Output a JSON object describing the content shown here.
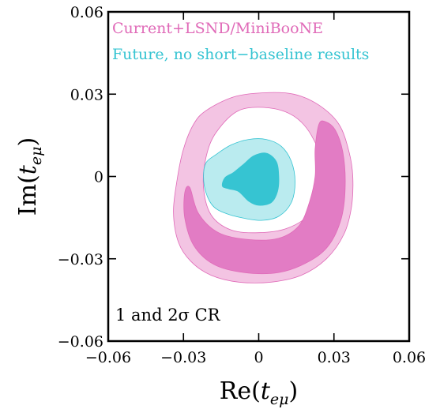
{
  "chart_data": {
    "type": "contour",
    "xlabel": {
      "prefix": "Re(",
      "symbol": "t",
      "subscript": "eμ",
      "suffix": ")"
    },
    "ylabel": {
      "prefix": "Im(",
      "symbol": "t",
      "subscript": "eμ",
      "suffix": ")"
    },
    "xlim": [
      -0.06,
      0.06
    ],
    "ylim": [
      -0.06,
      0.06
    ],
    "xticks": [
      -0.06,
      -0.03,
      0,
      0.03,
      0.06
    ],
    "yticks": [
      -0.06,
      -0.03,
      0,
      0.03,
      0.06
    ],
    "xtick_labels": [
      "−0.06",
      "−0.03",
      "0",
      "0.03",
      "0.06"
    ],
    "ytick_labels": [
      "−0.06",
      "−0.03",
      "0",
      "0.03",
      "0.06"
    ],
    "grid": false,
    "legend_position": "top-left",
    "annotation": {
      "text": "1 and 2σ CR",
      "position": "bottom-left"
    },
    "series": [
      {
        "name": "Current+LSND/MiniBooNE",
        "color": "#e06ab8",
        "regions": [
          {
            "level": "2σ",
            "color": "#f3c4e3",
            "outer": [
              [
                -0.021,
                0.024
              ],
              [
                -0.01,
                0.029
              ],
              [
                0.002,
                0.0305
              ],
              [
                0.014,
                0.03
              ],
              [
                0.024,
                0.026
              ],
              [
                0.032,
                0.019
              ],
              [
                0.036,
                0.009
              ],
              [
                0.0375,
                0.0
              ],
              [
                0.037,
                -0.011
              ],
              [
                0.034,
                -0.021
              ],
              [
                0.027,
                -0.03
              ],
              [
                0.017,
                -0.036
              ],
              [
                0.005,
                -0.0385
              ],
              [
                -0.008,
                -0.0385
              ],
              [
                -0.019,
                -0.036
              ],
              [
                -0.027,
                -0.031
              ],
              [
                -0.032,
                -0.024
              ],
              [
                -0.034,
                -0.013
              ],
              [
                -0.0325,
                -0.001
              ],
              [
                -0.03,
                0.01
              ],
              [
                -0.026,
                0.019
              ]
            ],
            "inner": [
              [
                -0.017,
                0.016
              ],
              [
                -0.008,
                0.024
              ],
              [
                0.004,
                0.025
              ],
              [
                0.014,
                0.022
              ],
              [
                0.021,
                0.015
              ],
              [
                0.025,
                0.005
              ],
              [
                0.0245,
                -0.006
              ],
              [
                0.02,
                -0.014
              ],
              [
                0.011,
                -0.019
              ],
              [
                0.0,
                -0.0205
              ],
              [
                -0.011,
                -0.0195
              ],
              [
                -0.019,
                -0.014
              ],
              [
                -0.022,
                -0.004
              ],
              [
                -0.021,
                0.007
              ]
            ]
          },
          {
            "level": "1σ",
            "color": "#e27cc4",
            "outer": [
              [
                -0.0275,
                -0.004
              ],
              [
                -0.024,
                -0.0135
              ],
              [
                -0.016,
                -0.0205
              ],
              [
                -0.004,
                -0.023
              ],
              [
                0.008,
                -0.0225
              ],
              [
                0.016,
                -0.018
              ],
              [
                0.02,
                -0.01
              ],
              [
                0.0225,
                0.0
              ],
              [
                0.0225,
                0.01
              ],
              [
                0.024,
                0.019
              ],
              [
                0.0265,
                0.02
              ],
              [
                0.0305,
                0.017
              ],
              [
                0.0335,
                0.009
              ],
              [
                0.0345,
                -0.003
              ],
              [
                0.033,
                -0.015
              ],
              [
                0.028,
                -0.025
              ],
              [
                0.02,
                -0.031
              ],
              [
                0.008,
                -0.035
              ],
              [
                -0.006,
                -0.035
              ],
              [
                -0.018,
                -0.032
              ],
              [
                -0.026,
                -0.025
              ],
              [
                -0.0295,
                -0.015
              ],
              [
                -0.0295,
                -0.006
              ]
            ]
          }
        ]
      },
      {
        "name": "Future, no short−baseline results",
        "color": "#36c4d2",
        "regions": [
          {
            "level": "2σ",
            "color": "#aee8ec",
            "outer": [
              [
                -0.021,
                0.005
              ],
              [
                -0.017,
                0.008
              ],
              [
                -0.011,
                0.0115
              ],
              [
                -0.004,
                0.0135
              ],
              [
                0.003,
                0.0135
              ],
              [
                0.009,
                0.011
              ],
              [
                0.013,
                0.0055
              ],
              [
                0.0145,
                -0.002
              ],
              [
                0.013,
                -0.0095
              ],
              [
                0.008,
                -0.0145
              ],
              [
                0.001,
                -0.016
              ],
              [
                -0.007,
                -0.015
              ],
              [
                -0.013,
                -0.0135
              ],
              [
                -0.018,
                -0.011
              ],
              [
                -0.021,
                -0.006
              ],
              [
                -0.022,
                0.0
              ]
            ]
          },
          {
            "level": "1σ",
            "color": "#36c4d2",
            "outer": [
              [
                -0.006,
                0.0045
              ],
              [
                -0.002,
                0.0075
              ],
              [
                0.003,
                0.0085
              ],
              [
                0.007,
                0.0055
              ],
              [
                0.008,
                0.0
              ],
              [
                0.0075,
                -0.0055
              ],
              [
                0.005,
                -0.0095
              ],
              [
                0.0,
                -0.0105
              ],
              [
                -0.004,
                -0.009
              ],
              [
                -0.008,
                -0.0055
              ],
              [
                -0.012,
                -0.0045
              ],
              [
                -0.0145,
                -0.0035
              ],
              [
                -0.0135,
                -0.0005
              ],
              [
                -0.01,
                0.0015
              ]
            ]
          }
        ]
      }
    ]
  }
}
